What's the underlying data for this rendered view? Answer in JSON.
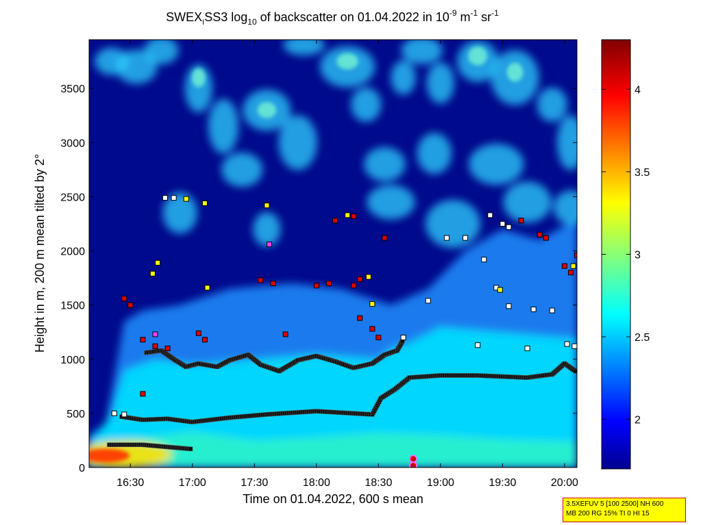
{
  "chart_data": {
    "type": "heatmap",
    "title": {
      "prefix": "SWEX",
      "sub1": "I",
      "mid": "SS3 log",
      "sub2": "10",
      "mid2": " of backscatter on 01.04.2022 in 10",
      "sup1": "-9",
      "mid3": " m",
      "sup2": "-1",
      "mid4": " sr",
      "sup3": "-1"
    },
    "xlabel": "Time on 01.04.2022, 600 s mean",
    "ylabel": "Height in m, 200 m mean tilted by 2°",
    "x_range_hours": [
      16.167,
      20.1
    ],
    "y_range": [
      0,
      3950
    ],
    "x_ticks": [
      {
        "value": 16.5,
        "label": "16:30"
      },
      {
        "value": 17.0,
        "label": "17:00"
      },
      {
        "value": 17.5,
        "label": "17:30"
      },
      {
        "value": 18.0,
        "label": "18:00"
      },
      {
        "value": 18.5,
        "label": "18:30"
      },
      {
        "value": 19.0,
        "label": "19:00"
      },
      {
        "value": 19.5,
        "label": "19:30"
      },
      {
        "value": 20.0,
        "label": "20:00"
      }
    ],
    "y_ticks": [
      {
        "value": 0,
        "label": "0"
      },
      {
        "value": 500,
        "label": "500"
      },
      {
        "value": 1000,
        "label": "1000"
      },
      {
        "value": 1500,
        "label": "1500"
      },
      {
        "value": 2000,
        "label": "2000"
      },
      {
        "value": 2500,
        "label": "2500"
      },
      {
        "value": 3000,
        "label": "3000"
      },
      {
        "value": 3500,
        "label": "3500"
      }
    ],
    "colorbar": {
      "range": [
        1.7,
        4.3
      ],
      "colormap": "jet",
      "ticks": [
        {
          "value": 2.0,
          "label": "2"
        },
        {
          "value": 2.5,
          "label": "2.5"
        },
        {
          "value": 3.0,
          "label": "3"
        },
        {
          "value": 3.5,
          "label": "3.5"
        },
        {
          "value": 4.0,
          "label": "4"
        }
      ]
    },
    "mixed_layer_height": [
      [
        16.33,
        210
      ],
      [
        16.6,
        210
      ],
      [
        16.8,
        190
      ],
      [
        17.0,
        170
      ]
    ],
    "boundary_layer_top": [
      [
        16.43,
        470
      ],
      [
        16.6,
        440
      ],
      [
        16.8,
        450
      ],
      [
        17.0,
        420
      ],
      [
        17.3,
        460
      ],
      [
        17.6,
        490
      ],
      [
        18.0,
        520
      ],
      [
        18.3,
        500
      ],
      [
        18.45,
        490
      ],
      [
        18.52,
        640
      ],
      [
        18.63,
        720
      ],
      [
        18.75,
        830
      ],
      [
        19.0,
        850
      ],
      [
        19.3,
        850
      ],
      [
        19.5,
        840
      ],
      [
        19.7,
        830
      ],
      [
        19.9,
        860
      ],
      [
        20.0,
        960
      ],
      [
        20.1,
        880
      ]
    ],
    "residual_layer": [
      [
        16.63,
        1060
      ],
      [
        16.75,
        1080
      ],
      [
        16.85,
        1000
      ],
      [
        16.95,
        930
      ],
      [
        17.05,
        960
      ],
      [
        17.2,
        930
      ],
      [
        17.3,
        990
      ],
      [
        17.45,
        1040
      ],
      [
        17.55,
        950
      ],
      [
        17.7,
        890
      ],
      [
        17.85,
        990
      ],
      [
        18.0,
        1030
      ],
      [
        18.15,
        980
      ],
      [
        18.3,
        920
      ],
      [
        18.45,
        960
      ],
      [
        18.55,
        1040
      ],
      [
        18.65,
        1080
      ],
      [
        18.7,
        1180
      ]
    ],
    "upper_layer_red": [
      [
        16.45,
        1560
      ],
      [
        16.5,
        1500
      ],
      [
        16.6,
        1180
      ],
      [
        16.7,
        1120
      ],
      [
        16.8,
        1100
      ],
      [
        17.05,
        1240
      ],
      [
        17.1,
        1180
      ],
      [
        17.55,
        1730
      ],
      [
        17.65,
        1700
      ],
      [
        18.0,
        1680
      ],
      [
        18.1,
        1700
      ],
      [
        18.3,
        1680
      ],
      [
        18.35,
        1740
      ],
      [
        18.15,
        2280
      ],
      [
        18.3,
        2320
      ],
      [
        18.55,
        2120
      ],
      [
        19.65,
        2280
      ],
      [
        19.8,
        2150
      ],
      [
        19.85,
        2120
      ],
      [
        20.0,
        1860
      ],
      [
        20.05,
        1800
      ],
      [
        20.1,
        1960
      ],
      [
        18.35,
        1380
      ],
      [
        18.45,
        1280
      ],
      [
        18.5,
        1200
      ],
      [
        17.75,
        1230
      ],
      [
        16.6,
        680
      ]
    ],
    "upper_layer_white": [
      [
        16.78,
        2490
      ],
      [
        16.85,
        2490
      ],
      [
        19.05,
        2120
      ],
      [
        19.2,
        2120
      ],
      [
        19.4,
        2330
      ],
      [
        19.5,
        2250
      ],
      [
        19.55,
        2220
      ],
      [
        19.35,
        1920
      ],
      [
        19.45,
        1660
      ],
      [
        19.55,
        1490
      ],
      [
        19.75,
        1460
      ],
      [
        19.9,
        1450
      ],
      [
        20.02,
        1140
      ],
      [
        20.08,
        1120
      ],
      [
        18.7,
        1200
      ],
      [
        18.9,
        1540
      ],
      [
        19.3,
        1130
      ],
      [
        19.7,
        1100
      ],
      [
        20.12,
        2500
      ],
      [
        16.45,
        490
      ],
      [
        16.37,
        500
      ]
    ],
    "upper_layer_yellow": [
      [
        16.95,
        2480
      ],
      [
        17.1,
        2440
      ],
      [
        17.6,
        2420
      ],
      [
        16.72,
        1890
      ],
      [
        16.68,
        1790
      ],
      [
        17.12,
        1660
      ],
      [
        18.42,
        1760
      ],
      [
        18.45,
        1510
      ],
      [
        19.48,
        1640
      ],
      [
        20.07,
        1860
      ],
      [
        18.25,
        2330
      ]
    ],
    "upper_layer_magenta": [
      [
        17.62,
        2060
      ],
      [
        16.7,
        1230
      ]
    ],
    "noise_point": [
      [
        18.78,
        80
      ]
    ]
  },
  "info_box": {
    "line1": "3.5XEFUV 5 [100 2500] NH 600",
    "line2": "MB 200 RG 15% TI 0 HI 15"
  },
  "colors": {
    "background": "#000080",
    "red_marker": "#dd0000",
    "yellow_marker": "#ffff00",
    "white_marker": "#ffffff",
    "black_marker": "#111111"
  }
}
